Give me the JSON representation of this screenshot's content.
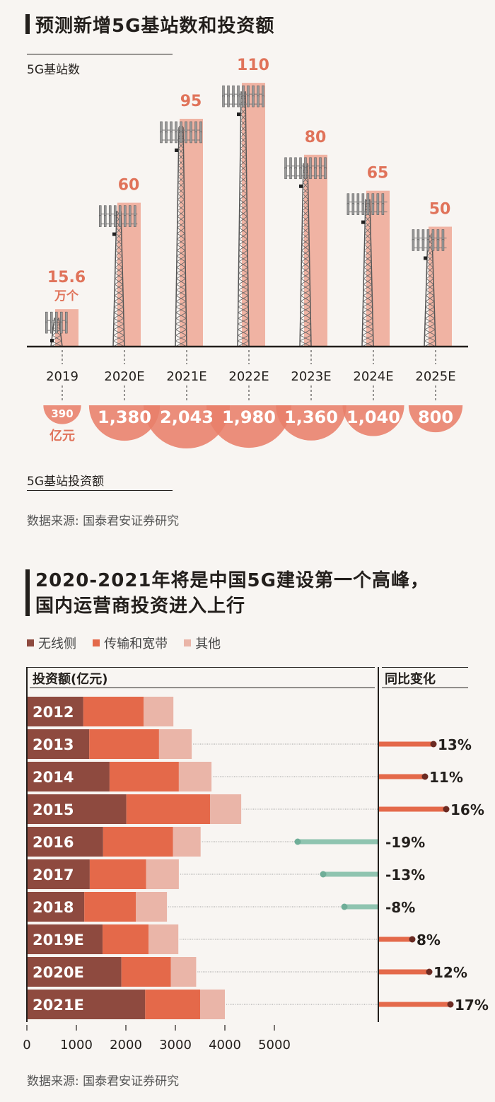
{
  "top": {
    "title": "预测新增5G基站数和投资额",
    "count_label": "5G基站数",
    "invest_label": "5G基站投资额",
    "first_count_unit": "万个",
    "first_invest_unit": "亿元",
    "source": "数据来源: 国泰君安证券研究"
  },
  "bottom": {
    "title_line1": "2020-2021年将是中国5G建设第一个高峰，",
    "title_line2": "国内运营商投资进入上行",
    "left_header": "投资额(亿元)",
    "right_header": "同比变化",
    "source": "数据来源: 国泰君安证券研究",
    "legend": [
      "无线侧",
      "传输和宽带",
      "其他"
    ]
  },
  "colors": {
    "accent": "#e0735a",
    "bar_pink": "#f0b3a3",
    "bubble": "#e8806a",
    "wireless": "#8e4a3f",
    "transmission": "#e4694a",
    "other": "#eab5a8",
    "negative": "#8fc4b0",
    "positive_dot": "#6b2a22"
  },
  "chart_data": [
    {
      "type": "bar",
      "title": "预测新增5G基站数和投资额",
      "categories": [
        "2019",
        "2020E",
        "2021E",
        "2022E",
        "2023E",
        "2024E",
        "2025E"
      ],
      "series": [
        {
          "name": "5G基站数",
          "unit": "万个",
          "values": [
            15.6,
            60,
            95,
            110,
            80,
            65,
            50
          ],
          "labels": [
            "15.6",
            "60",
            "95",
            "110",
            "80",
            "65",
            "50"
          ]
        },
        {
          "name": "5G基站投资额",
          "unit": "亿元",
          "values": [
            390,
            1380,
            2043,
            1980,
            1360,
            1040,
            800
          ],
          "labels": [
            "390",
            "1,380",
            "2,043",
            "1,980",
            "1,360",
            "1,040",
            "800"
          ]
        }
      ]
    },
    {
      "type": "bar",
      "orientation": "horizontal",
      "stacked": true,
      "title": "2020-2021年将是中国5G建设第一个高峰，国内运营商投资进入上行",
      "xlabel": "投资额(亿元)",
      "xlim": [
        0,
        5000
      ],
      "xticks": [
        "0",
        "1000",
        "2000",
        "3000",
        "4000",
        "5000"
      ],
      "legend_position": "top-left",
      "categories": [
        "2012",
        "2013",
        "2014",
        "2015",
        "2016",
        "2017",
        "2018",
        "2019E",
        "2020E",
        "2021E"
      ],
      "series": [
        {
          "name": "无线侧",
          "values": [
            1140,
            1260,
            1670,
            2010,
            1540,
            1270,
            1160,
            1530,
            1910,
            2390
          ]
        },
        {
          "name": "传输和宽带",
          "values": [
            1220,
            1410,
            1400,
            1690,
            1410,
            1140,
            1040,
            930,
            1000,
            1110
          ]
        },
        {
          "name": "其他",
          "values": [
            600,
            660,
            660,
            630,
            560,
            660,
            630,
            600,
            510,
            500
          ]
        }
      ],
      "yoy": {
        "name": "同比变化",
        "values": [
          null,
          13,
          11,
          16,
          -19,
          -13,
          -8,
          8,
          12,
          17
        ],
        "labels": [
          "",
          "13%",
          "11%",
          "16%",
          "-19%",
          "-13%",
          "-8%",
          "8%",
          "12%",
          "17%"
        ]
      }
    }
  ]
}
